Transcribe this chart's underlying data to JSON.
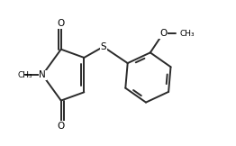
{
  "bg_color": "#ffffff",
  "line_color": "#2a2a2a",
  "line_width": 1.4,
  "font_size_atom": 7.5,
  "font_size_methyl": 6.5,
  "atom_color": "#000000",
  "xlim": [
    -0.02,
    1.55
  ],
  "ylim": [
    -0.05,
    1.08
  ]
}
